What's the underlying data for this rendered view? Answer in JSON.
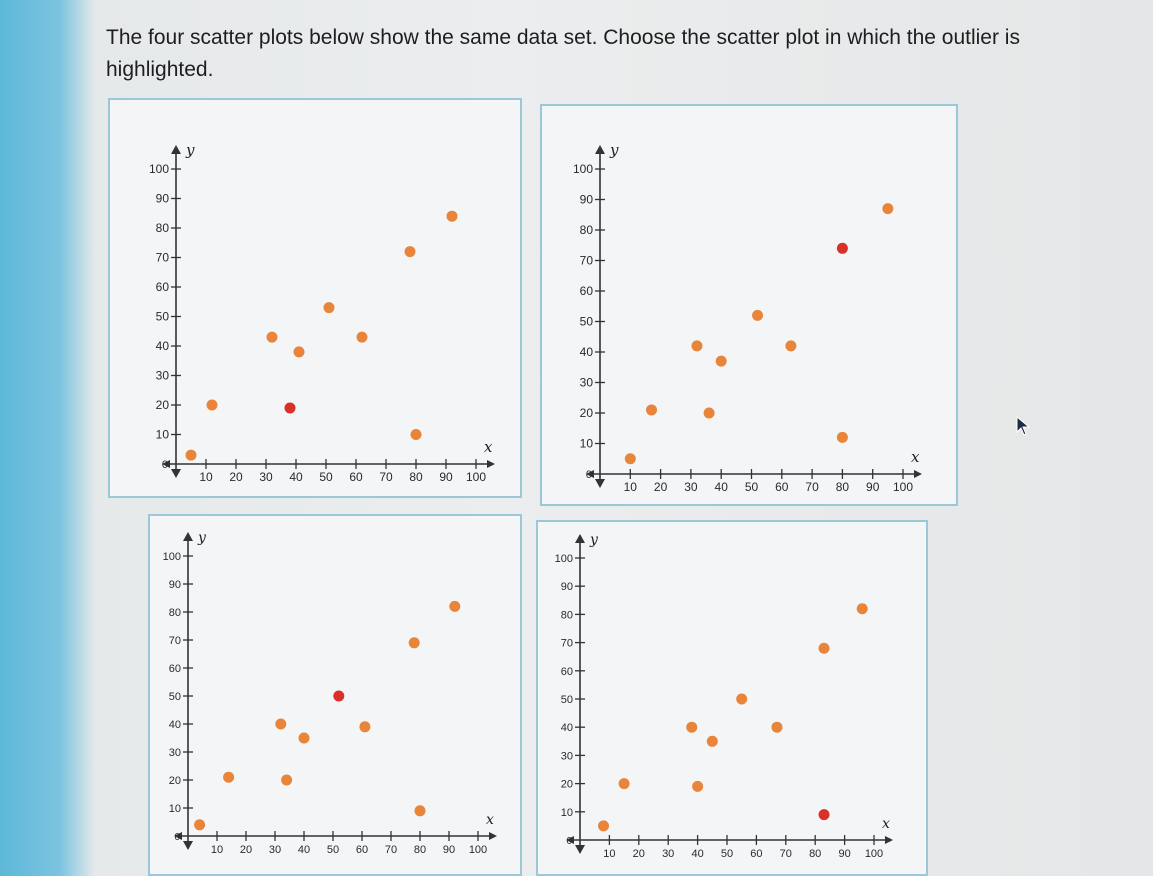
{
  "question": {
    "text": "The four scatter plots below show the same data set. Choose the scatter plot in which the outlier is highlighted."
  },
  "colors": {
    "point": "#e8853a",
    "highlight": "#d9302a",
    "axis": "#333333",
    "panel_border": "#9cc7d6"
  },
  "chart_data": [
    {
      "type": "scatter",
      "xlabel": "x",
      "ylabel": "y",
      "xlim": [
        0,
        100
      ],
      "ylim": [
        0,
        100
      ],
      "x_ticks": [
        10,
        20,
        30,
        40,
        50,
        60,
        70,
        80,
        90,
        100
      ],
      "y_ticks": [
        10,
        20,
        30,
        40,
        50,
        60,
        70,
        80,
        90,
        100
      ],
      "origin_label": "0",
      "grid": false,
      "points": [
        {
          "x": 5,
          "y": 3
        },
        {
          "x": 12,
          "y": 20
        },
        {
          "x": 32,
          "y": 43
        },
        {
          "x": 41,
          "y": 38
        },
        {
          "x": 51,
          "y": 53
        },
        {
          "x": 62,
          "y": 43
        },
        {
          "x": 78,
          "y": 72
        },
        {
          "x": 80,
          "y": 10
        },
        {
          "x": 92,
          "y": 84
        },
        {
          "x": 38,
          "y": 19,
          "highlighted": true
        }
      ]
    },
    {
      "type": "scatter",
      "xlabel": "x",
      "ylabel": "y",
      "xlim": [
        0,
        100
      ],
      "ylim": [
        0,
        100
      ],
      "x_ticks": [
        10,
        20,
        30,
        40,
        50,
        60,
        70,
        80,
        90,
        100
      ],
      "y_ticks": [
        10,
        20,
        30,
        40,
        50,
        60,
        70,
        80,
        90,
        100
      ],
      "origin_label": "0",
      "grid": false,
      "points": [
        {
          "x": 10,
          "y": 5
        },
        {
          "x": 17,
          "y": 21
        },
        {
          "x": 32,
          "y": 42
        },
        {
          "x": 36,
          "y": 20
        },
        {
          "x": 40,
          "y": 37
        },
        {
          "x": 52,
          "y": 52
        },
        {
          "x": 63,
          "y": 42
        },
        {
          "x": 80,
          "y": 12
        },
        {
          "x": 95,
          "y": 87
        },
        {
          "x": 80,
          "y": 74,
          "highlighted": true
        }
      ]
    },
    {
      "type": "scatter",
      "xlabel": "x",
      "ylabel": "y",
      "xlim": [
        0,
        100
      ],
      "ylim": [
        0,
        100
      ],
      "x_ticks": [
        10,
        20,
        30,
        40,
        50,
        60,
        70,
        80,
        90,
        100
      ],
      "y_ticks": [
        10,
        20,
        30,
        40,
        50,
        60,
        70,
        80,
        90,
        100
      ],
      "origin_label": "0",
      "grid": false,
      "points": [
        {
          "x": 4,
          "y": 4
        },
        {
          "x": 14,
          "y": 21
        },
        {
          "x": 32,
          "y": 40
        },
        {
          "x": 34,
          "y": 20
        },
        {
          "x": 40,
          "y": 35
        },
        {
          "x": 61,
          "y": 39
        },
        {
          "x": 78,
          "y": 69
        },
        {
          "x": 80,
          "y": 9
        },
        {
          "x": 92,
          "y": 82
        },
        {
          "x": 52,
          "y": 50,
          "highlighted": true
        }
      ]
    },
    {
      "type": "scatter",
      "xlabel": "x",
      "ylabel": "y",
      "xlim": [
        0,
        100
      ],
      "ylim": [
        0,
        100
      ],
      "x_ticks": [
        10,
        20,
        30,
        40,
        50,
        60,
        70,
        80,
        90,
        100
      ],
      "y_ticks": [
        10,
        20,
        30,
        40,
        50,
        60,
        70,
        80,
        90,
        100
      ],
      "origin_label": "0",
      "grid": false,
      "points": [
        {
          "x": 8,
          "y": 5
        },
        {
          "x": 15,
          "y": 20
        },
        {
          "x": 38,
          "y": 40
        },
        {
          "x": 40,
          "y": 19
        },
        {
          "x": 45,
          "y": 35
        },
        {
          "x": 55,
          "y": 50
        },
        {
          "x": 67,
          "y": 40
        },
        {
          "x": 83,
          "y": 68
        },
        {
          "x": 96,
          "y": 82
        },
        {
          "x": 83,
          "y": 9,
          "highlighted": true
        }
      ]
    }
  ]
}
